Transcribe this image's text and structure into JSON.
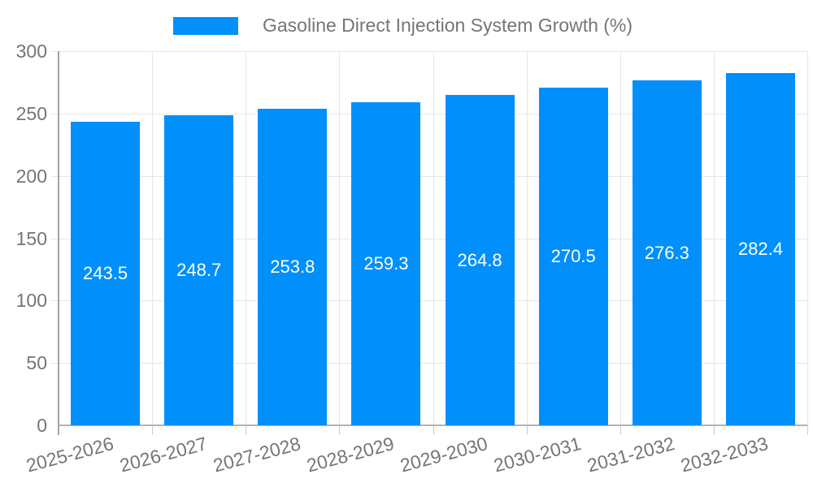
{
  "chart_data": {
    "type": "bar",
    "title": "Gasoline Direct Injection System Growth (%)",
    "legend": {
      "label": "Gasoline Direct Injection System Growth (%)",
      "position": "top"
    },
    "categories": [
      "2025-2026",
      "2026-2027",
      "2027-2028",
      "2028-2029",
      "2029-2030",
      "2030-2031",
      "2031-2032",
      "2032-2033"
    ],
    "values": [
      243.5,
      248.7,
      253.8,
      259.3,
      264.8,
      270.5,
      276.3,
      282.4
    ],
    "bar_value_labels": [
      "243.5",
      "248.7",
      "253.8",
      "259.3",
      "264.8",
      "270.5",
      "276.3",
      "282.4"
    ],
    "xlabel": "",
    "ylabel": "",
    "ylim": [
      0,
      300
    ],
    "yticks": [
      0,
      50,
      100,
      150,
      200,
      250,
      300
    ],
    "grid": true,
    "colors": {
      "bar": "#008FFB",
      "bar_value_text": "#ffffff",
      "axis_text": "#757575",
      "gridline": "#e6e6e6",
      "axis_line": "#a3a3a3",
      "background": "#ffffff"
    }
  }
}
